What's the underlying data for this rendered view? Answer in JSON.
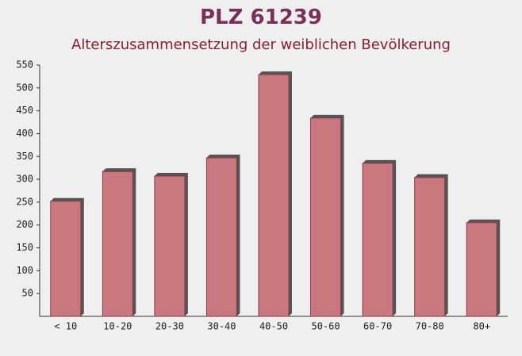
{
  "chart_data": {
    "type": "bar",
    "title": "PLZ 61239",
    "subtitle": "Alterszusammensetzung der weiblichen Bevölkerung",
    "categories": [
      "< 10",
      "10-20",
      "20-30",
      "30-40",
      "40-50",
      "50-60",
      "60-70",
      "70-80",
      "80+"
    ],
    "values": [
      252,
      317,
      307,
      347,
      529,
      434,
      335,
      304,
      205
    ],
    "color": "#c46a72",
    "ylim": [
      0,
      550
    ],
    "yticks": [
      50,
      100,
      150,
      200,
      250,
      300,
      350,
      400,
      450,
      500,
      550
    ]
  }
}
